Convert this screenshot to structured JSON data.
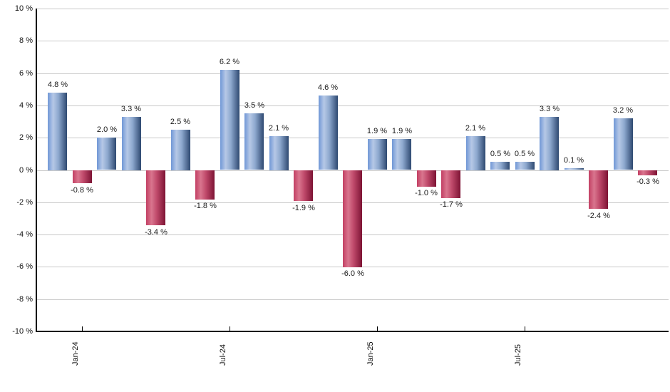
{
  "chart_data": {
    "type": "bar",
    "title": "",
    "xlabel": "",
    "ylabel": "",
    "ylim": [
      -10,
      10
    ],
    "y_tick_step": 2,
    "grid": true,
    "legend": "none",
    "y_tick_labels": [
      "10 %",
      "8 %",
      "6 %",
      "4 %",
      "2 %",
      "0 %",
      "-2 %",
      "-4 %",
      "-6 %",
      "-8 %",
      "-10 %"
    ],
    "x_tick_labels": [
      {
        "label": "Jan-24",
        "bar_index": 1
      },
      {
        "label": "Jul-24",
        "bar_index": 7
      },
      {
        "label": "Jan-25",
        "bar_index": 13
      },
      {
        "label": "Jul-25",
        "bar_index": 19
      }
    ],
    "values": [
      4.8,
      -0.8,
      2.0,
      3.3,
      -3.4,
      2.5,
      -1.8,
      6.2,
      3.5,
      2.1,
      -1.9,
      4.6,
      -6.0,
      1.9,
      1.9,
      -1.0,
      -1.7,
      2.1,
      0.5,
      0.5,
      3.3,
      0.1,
      -2.4,
      3.2,
      -0.3
    ],
    "value_labels": [
      "4.8 %",
      "-0.8 %",
      "2.0 %",
      "3.3 %",
      "-3.4 %",
      "2.5 %",
      "-1.8 %",
      "6.2 %",
      "3.5 %",
      "2.1 %",
      "-1.9 %",
      "4.6 %",
      "-6.0 %",
      "1.9 %",
      "1.9 %",
      "-1.0 %",
      "-1.7 %",
      "2.1 %",
      "0.5 %",
      "0.5 %",
      "3.3 %",
      "0.1 %",
      "-2.4 %",
      "3.2 %",
      "-0.3 %"
    ],
    "colors": {
      "positive_gradient": [
        "#7097d6",
        "#b6c8e6",
        "#8ea9cf",
        "#2e4971"
      ],
      "negative_gradient": [
        "#c23f63",
        "#d9758e",
        "#c04a6b",
        "#7d1334"
      ],
      "gradient_stops_pct": [
        0,
        28,
        55,
        100
      ],
      "gridline": "#c9c9c9",
      "axis": "#000000",
      "label_text": "#1a1a1a",
      "background": "#ffffff"
    }
  }
}
